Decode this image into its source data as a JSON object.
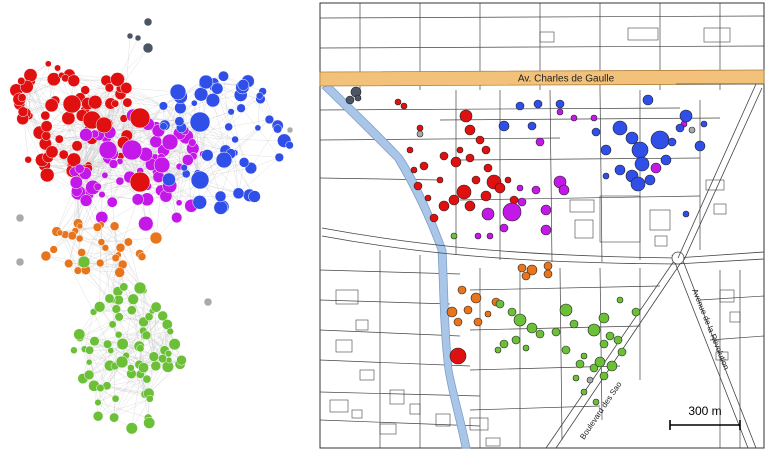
{
  "colors": {
    "cluster_red": "#e01010",
    "cluster_purple": "#c418e8",
    "cluster_blue": "#2f4fe8",
    "cluster_orange": "#e8741c",
    "cluster_green": "#6cc038",
    "cluster_gray": "#4b5563",
    "isolated_node": "#aaaaaa",
    "network_edge": "#c8c8c8",
    "avenue_fill": "#f2c27a",
    "river_fill": "#a9c6e8",
    "map_line": "#333333"
  },
  "map": {
    "street_labels": {
      "charles_de_gaulle": "Av. Charles de Gaulle",
      "revolution": "Avenue de la Révolution",
      "boulevard": "Boulevard des Sao"
    },
    "scale_bar": {
      "label": "300 m"
    }
  }
}
